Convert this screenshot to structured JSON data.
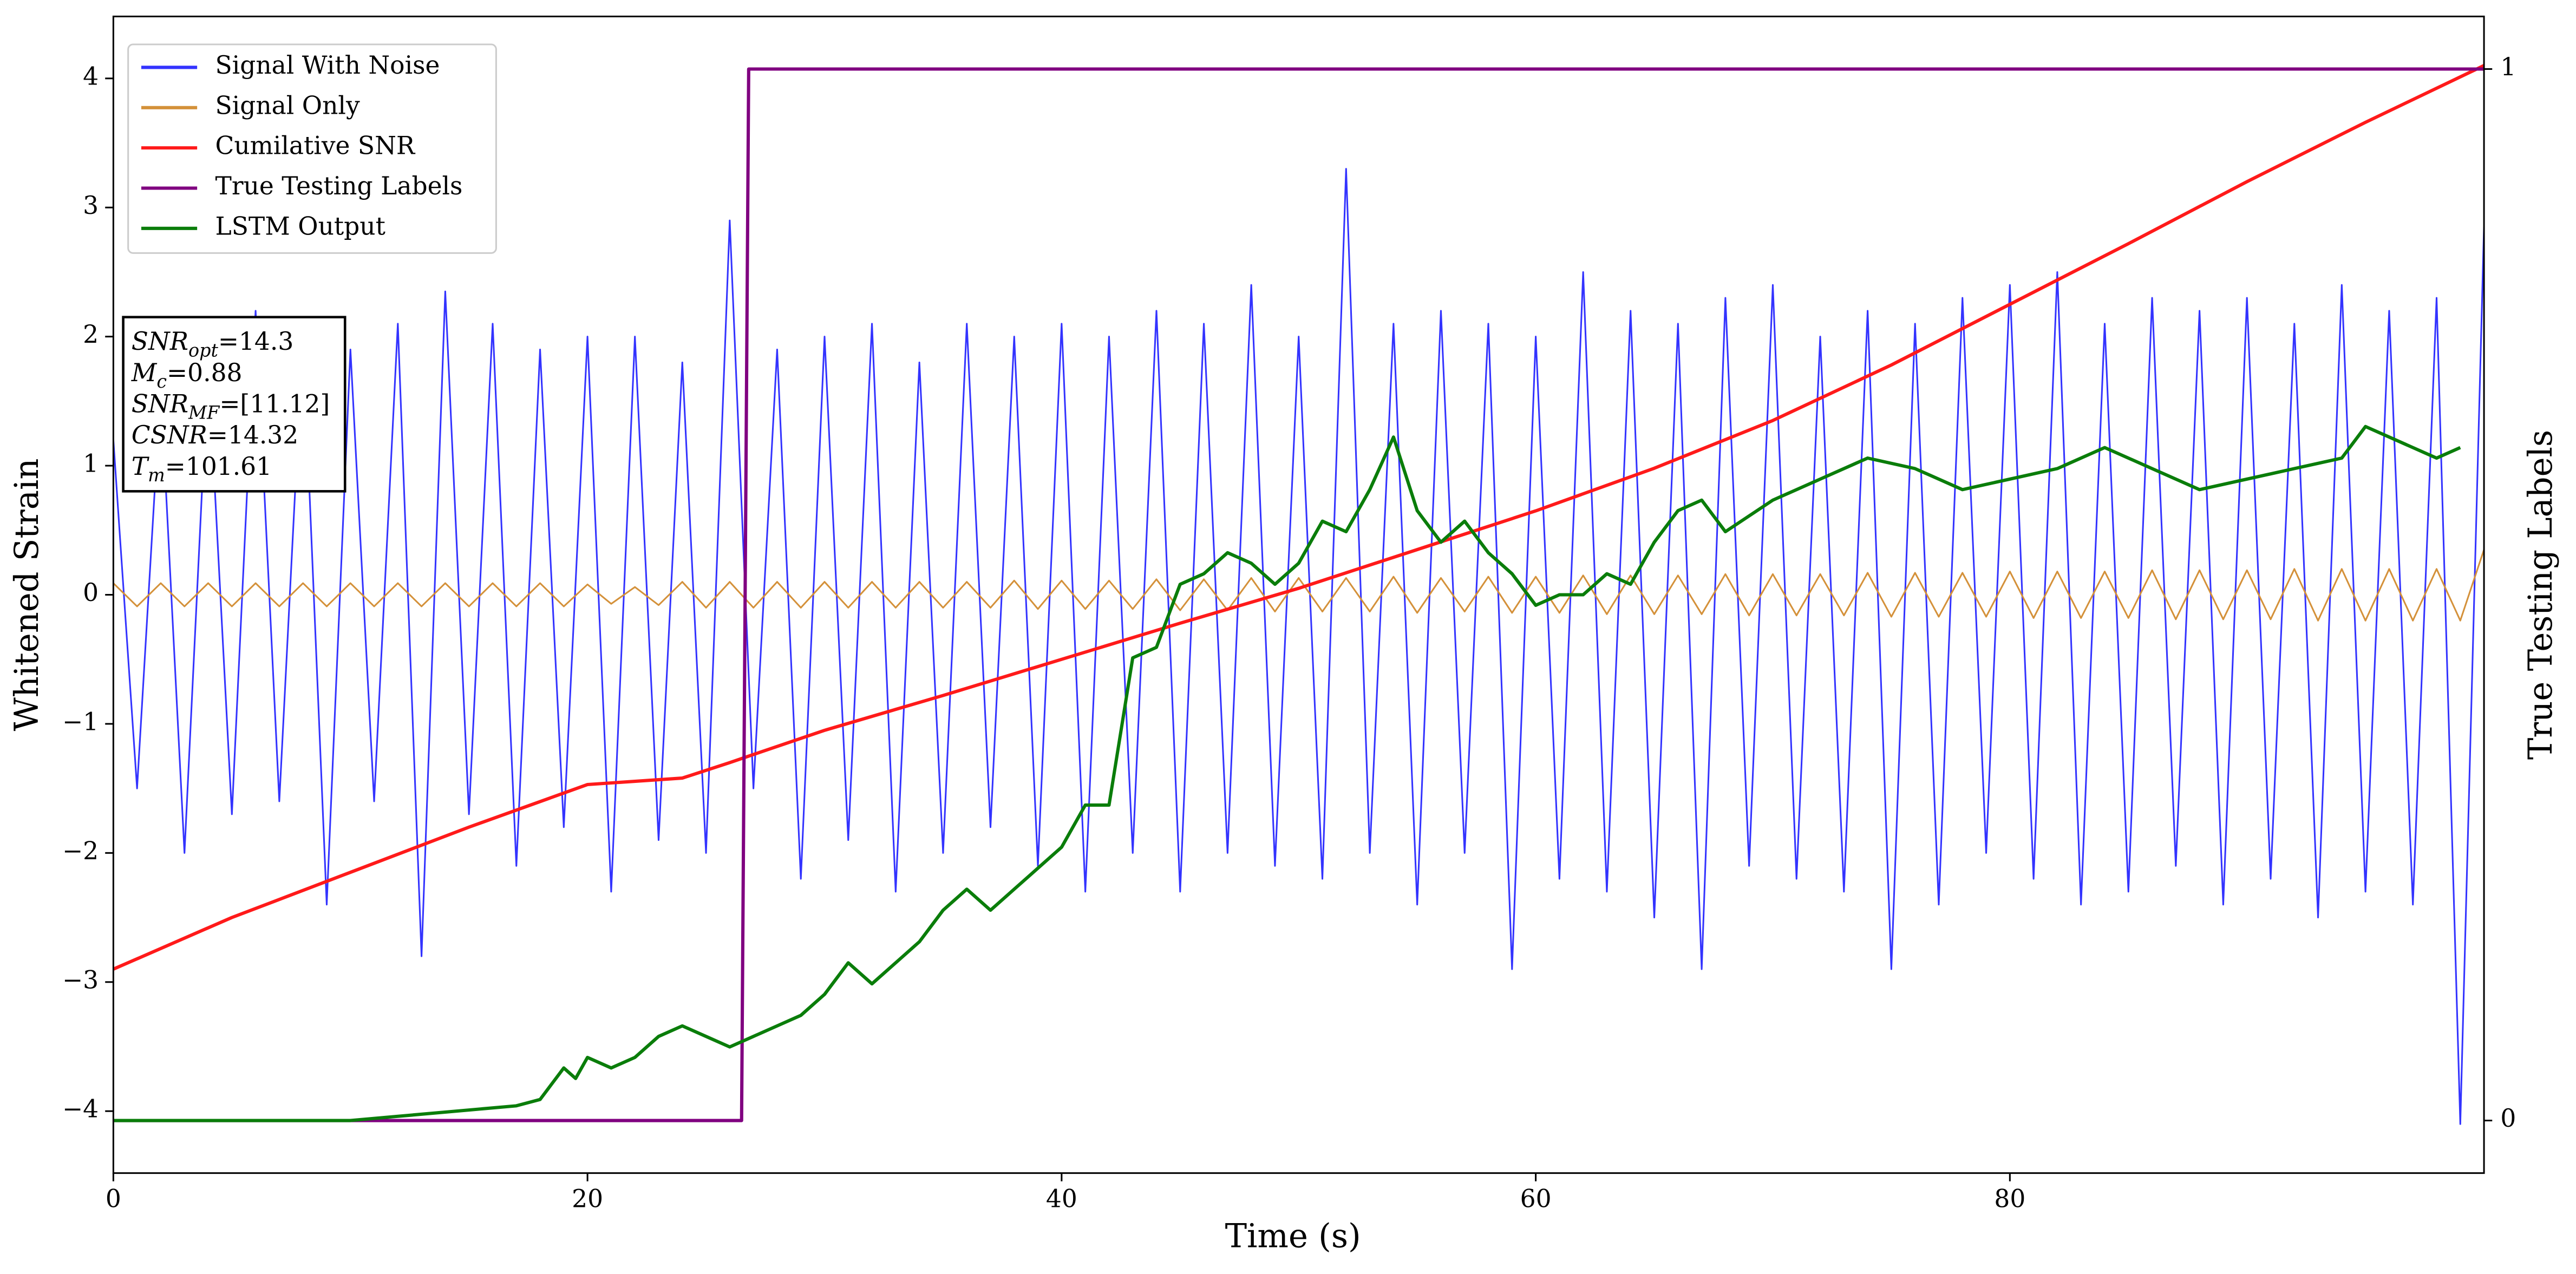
{
  "chart_data": {
    "type": "line",
    "xlabel": "Time (s)",
    "ylabel": "Whitened Strain",
    "y2label": "True Testing Labels",
    "xlim": [
      0,
      100
    ],
    "xticks": [
      0,
      20,
      40,
      60,
      80
    ],
    "ylim": [
      -4.48,
      4.48
    ],
    "yticks": [
      {
        "value": -4,
        "label": "−4"
      },
      {
        "value": -3,
        "label": "−3"
      },
      {
        "value": -2,
        "label": "−2"
      },
      {
        "value": -1,
        "label": "−1"
      },
      0,
      1,
      2,
      3,
      4
    ],
    "y2lim": [
      -0.05,
      1.05
    ],
    "y2ticks": [
      0,
      1
    ],
    "legend": "upper left",
    "x": [
      0,
      1,
      2,
      3,
      4,
      5,
      6,
      7,
      8,
      9,
      10,
      11,
      12,
      13,
      14,
      15,
      16,
      17,
      18,
      19,
      20,
      21,
      22,
      23,
      24,
      25,
      26,
      27,
      28,
      29,
      30,
      31,
      32,
      33,
      34,
      35,
      36,
      37,
      38,
      39,
      40,
      41,
      42,
      43,
      44,
      45,
      46,
      47,
      48,
      49,
      50,
      51,
      52,
      53,
      54,
      55,
      56,
      57,
      58,
      59,
      60,
      61,
      62,
      63,
      64,
      65,
      66,
      67,
      68,
      69,
      70,
      71,
      72,
      73,
      74,
      75,
      76,
      77,
      78,
      79,
      80,
      81,
      82,
      83,
      84,
      85,
      86,
      87,
      88,
      89,
      90,
      91,
      92,
      93,
      94,
      95,
      96,
      97,
      98,
      99,
      100
    ],
    "series": [
      {
        "name": "Signal With Noise",
        "color": "#3333ff",
        "axis": "y",
        "values": [
          1.2,
          -1.5,
          1.6,
          -2.0,
          1.8,
          -1.7,
          2.2,
          -1.6,
          2.0,
          -2.4,
          1.9,
          -1.6,
          2.1,
          -2.8,
          2.35,
          -1.7,
          2.1,
          -2.1,
          1.9,
          -1.8,
          2.0,
          -2.3,
          2.0,
          -1.9,
          1.8,
          -2.0,
          2.9,
          -1.5,
          1.9,
          -2.2,
          2.0,
          -1.9,
          2.1,
          -2.3,
          1.8,
          -2.0,
          2.1,
          -1.8,
          2.0,
          -2.1,
          2.1,
          -2.3,
          2.0,
          -2.0,
          2.2,
          -2.3,
          2.1,
          -2.0,
          2.4,
          -2.1,
          2.0,
          -2.2,
          3.3,
          -2.0,
          2.1,
          -2.4,
          2.2,
          -2.0,
          2.1,
          -2.9,
          2.0,
          -2.2,
          2.5,
          -2.3,
          2.2,
          -2.5,
          2.1,
          -2.9,
          2.3,
          -2.1,
          2.4,
          -2.2,
          2.0,
          -2.3,
          2.2,
          -2.9,
          2.1,
          -2.4,
          2.3,
          -2.0,
          2.4,
          -2.2,
          2.5,
          -2.4,
          2.1,
          -2.3,
          2.3,
          -2.1,
          2.2,
          -2.4,
          2.3,
          -2.2,
          2.1,
          -2.5,
          2.4,
          -2.3,
          2.2,
          -2.4,
          2.3,
          -4.1,
          2.85
        ]
      },
      {
        "name": "Signal Only",
        "color": "#d4913a",
        "axis": "y",
        "values": [
          0.09,
          -0.09,
          0.09,
          -0.09,
          0.09,
          -0.09,
          0.09,
          -0.09,
          0.09,
          -0.09,
          0.09,
          -0.09,
          0.09,
          -0.09,
          0.09,
          -0.09,
          0.09,
          -0.09,
          0.09,
          -0.09,
          0.08,
          -0.07,
          0.06,
          -0.08,
          0.1,
          -0.1,
          0.1,
          -0.1,
          0.1,
          -0.1,
          0.1,
          -0.1,
          0.1,
          -0.1,
          0.1,
          -0.1,
          0.1,
          -0.1,
          0.11,
          -0.11,
          0.11,
          -0.11,
          0.11,
          -0.11,
          0.12,
          -0.12,
          0.12,
          -0.12,
          0.13,
          -0.13,
          0.13,
          -0.13,
          0.13,
          -0.13,
          0.14,
          -0.14,
          0.13,
          -0.13,
          0.14,
          -0.14,
          0.14,
          -0.14,
          0.15,
          -0.15,
          0.15,
          -0.15,
          0.15,
          -0.15,
          0.16,
          -0.16,
          0.16,
          -0.16,
          0.16,
          -0.16,
          0.17,
          -0.17,
          0.17,
          -0.17,
          0.17,
          -0.17,
          0.18,
          -0.18,
          0.18,
          -0.18,
          0.18,
          -0.18,
          0.19,
          -0.19,
          0.19,
          -0.19,
          0.19,
          -0.19,
          0.2,
          -0.2,
          0.2,
          -0.2,
          0.2,
          -0.2,
          0.2,
          -0.2,
          0.35
        ]
      },
      {
        "name": "Cumilative SNR",
        "color": "#ff1a1a",
        "axis": "y",
        "x": [
          0,
          5,
          10,
          15,
          20,
          24,
          26,
          30,
          35,
          40,
          45,
          50,
          55,
          60,
          65,
          70,
          75,
          80,
          85,
          90,
          95,
          100
        ],
        "values": [
          -2.9,
          -2.5,
          -2.15,
          -1.8,
          -1.47,
          -1.42,
          -1.3,
          -1.05,
          -0.78,
          -0.5,
          -0.22,
          0.05,
          0.35,
          0.65,
          0.98,
          1.35,
          1.78,
          2.25,
          2.72,
          3.2,
          3.66,
          4.1
        ]
      },
      {
        "name": "True Testing Labels",
        "color": "#800080",
        "axis": "y2",
        "x": [
          0,
          26.5,
          26.8,
          100
        ],
        "values": [
          0,
          0,
          1,
          1
        ]
      },
      {
        "name": "LSTM Output",
        "color": "#0a7d0a",
        "axis": "y2",
        "x": [
          0,
          10,
          12,
          15,
          17,
          18,
          19,
          19.5,
          20,
          21,
          22,
          23,
          24,
          25,
          26,
          27,
          28,
          29,
          30,
          31,
          32,
          33,
          34,
          35,
          36,
          37,
          38,
          39,
          40,
          41,
          42,
          43,
          44,
          45,
          46,
          47,
          48,
          49,
          50,
          51,
          52,
          53,
          54,
          55,
          56,
          57,
          58,
          59,
          60,
          61,
          62,
          63,
          64,
          65,
          66,
          67,
          68,
          70,
          72,
          74,
          76,
          78,
          80,
          82,
          84,
          86,
          88,
          90,
          92,
          94,
          95,
          96,
          97,
          98,
          99
        ],
        "values": [
          0,
          0,
          0.004,
          0.01,
          0.014,
          0.02,
          0.05,
          0.04,
          0.06,
          0.05,
          0.06,
          0.08,
          0.09,
          0.08,
          0.07,
          0.08,
          0.09,
          0.1,
          0.12,
          0.15,
          0.13,
          0.15,
          0.17,
          0.2,
          0.22,
          0.2,
          0.22,
          0.24,
          0.26,
          0.3,
          0.3,
          0.44,
          0.45,
          0.51,
          0.52,
          0.54,
          0.53,
          0.51,
          0.53,
          0.57,
          0.56,
          0.6,
          0.65,
          0.58,
          0.55,
          0.57,
          0.54,
          0.52,
          0.49,
          0.5,
          0.5,
          0.52,
          0.51,
          0.55,
          0.58,
          0.59,
          0.56,
          0.59,
          0.61,
          0.63,
          0.62,
          0.6,
          0.61,
          0.62,
          0.64,
          0.62,
          0.6,
          0.61,
          0.62,
          0.63,
          0.66,
          0.65,
          0.64,
          0.63,
          0.64
        ]
      }
    ],
    "annotation": [
      {
        "main": "SNR",
        "sub": "opt",
        "rest": "=14.3"
      },
      {
        "main": "M",
        "sub": "c",
        "rest": "=0.88"
      },
      {
        "main": "SNR",
        "sub": "MF",
        "rest": "=[11.12]"
      },
      {
        "main": "CSNR",
        "sub": "",
        "rest": "=14.32"
      },
      {
        "main": "T",
        "sub": "m",
        "rest": "=101.61"
      }
    ]
  }
}
